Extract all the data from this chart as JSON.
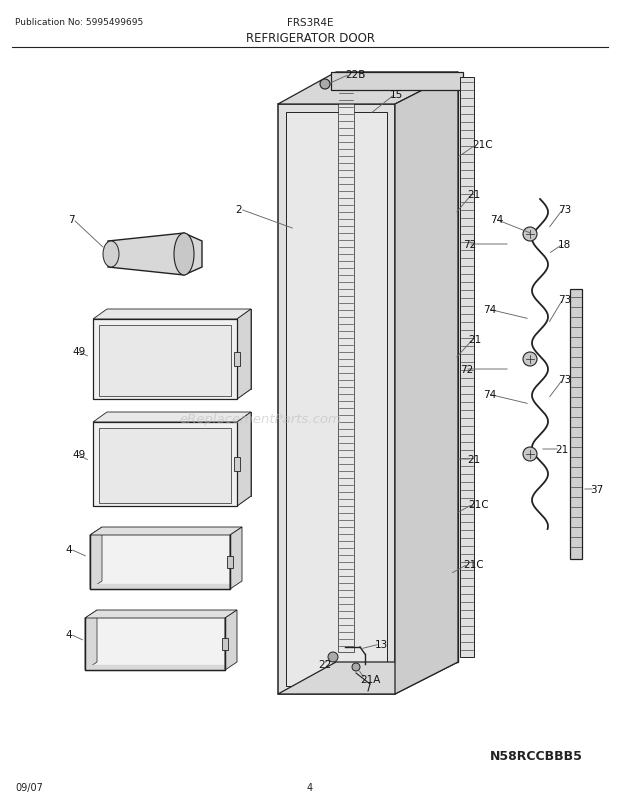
{
  "title": "REFRIGERATOR DOOR",
  "pub_no": "Publication No: 5995499695",
  "model": "FRS3R4E",
  "diagram_code": "N58RCCBBB5",
  "date": "09/07",
  "page": "4",
  "bg_color": "#ffffff",
  "lc": "#222222",
  "lc_thin": "#444444",
  "fill_light": "#f2f2f2",
  "fill_mid": "#e0e0e0",
  "fill_dark": "#cccccc",
  "watermark": "eReplacementParts.com"
}
